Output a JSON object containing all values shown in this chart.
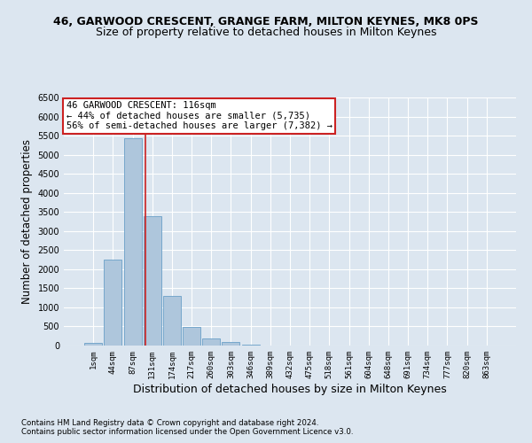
{
  "title": "46, GARWOOD CRESCENT, GRANGE FARM, MILTON KEYNES, MK8 0PS",
  "subtitle": "Size of property relative to detached houses in Milton Keynes",
  "xlabel": "Distribution of detached houses by size in Milton Keynes",
  "ylabel": "Number of detached properties",
  "footnote1": "Contains HM Land Registry data © Crown copyright and database right 2024.",
  "footnote2": "Contains public sector information licensed under the Open Government Licence v3.0.",
  "bar_labels": [
    "1sqm",
    "44sqm",
    "87sqm",
    "131sqm",
    "174sqm",
    "217sqm",
    "260sqm",
    "303sqm",
    "346sqm",
    "389sqm",
    "432sqm",
    "475sqm",
    "518sqm",
    "561sqm",
    "604sqm",
    "648sqm",
    "691sqm",
    "734sqm",
    "777sqm",
    "820sqm",
    "863sqm"
  ],
  "bar_values": [
    80,
    2260,
    5430,
    3380,
    1300,
    490,
    185,
    90,
    30,
    0,
    0,
    0,
    0,
    0,
    0,
    0,
    0,
    0,
    0,
    0,
    0
  ],
  "bar_color": "#aec6dc",
  "bar_edge_color": "#6aa0c8",
  "vline_color": "#cc2222",
  "annotation_text": "46 GARWOOD CRESCENT: 116sqm\n← 44% of detached houses are smaller (5,735)\n56% of semi-detached houses are larger (7,382) →",
  "annotation_box_color": "#ffffff",
  "annotation_box_edge": "#cc2222",
  "ylim": [
    0,
    6500
  ],
  "yticks": [
    0,
    500,
    1000,
    1500,
    2000,
    2500,
    3000,
    3500,
    4000,
    4500,
    5000,
    5500,
    6000,
    6500
  ],
  "bg_color": "#dce6f0",
  "plot_bg_color": "#dce6f0",
  "grid_color": "#ffffff",
  "title_fontsize": 9,
  "subtitle_fontsize": 9,
  "tick_fontsize": 6.5,
  "xlabel_fontsize": 9,
  "ylabel_fontsize": 8.5
}
